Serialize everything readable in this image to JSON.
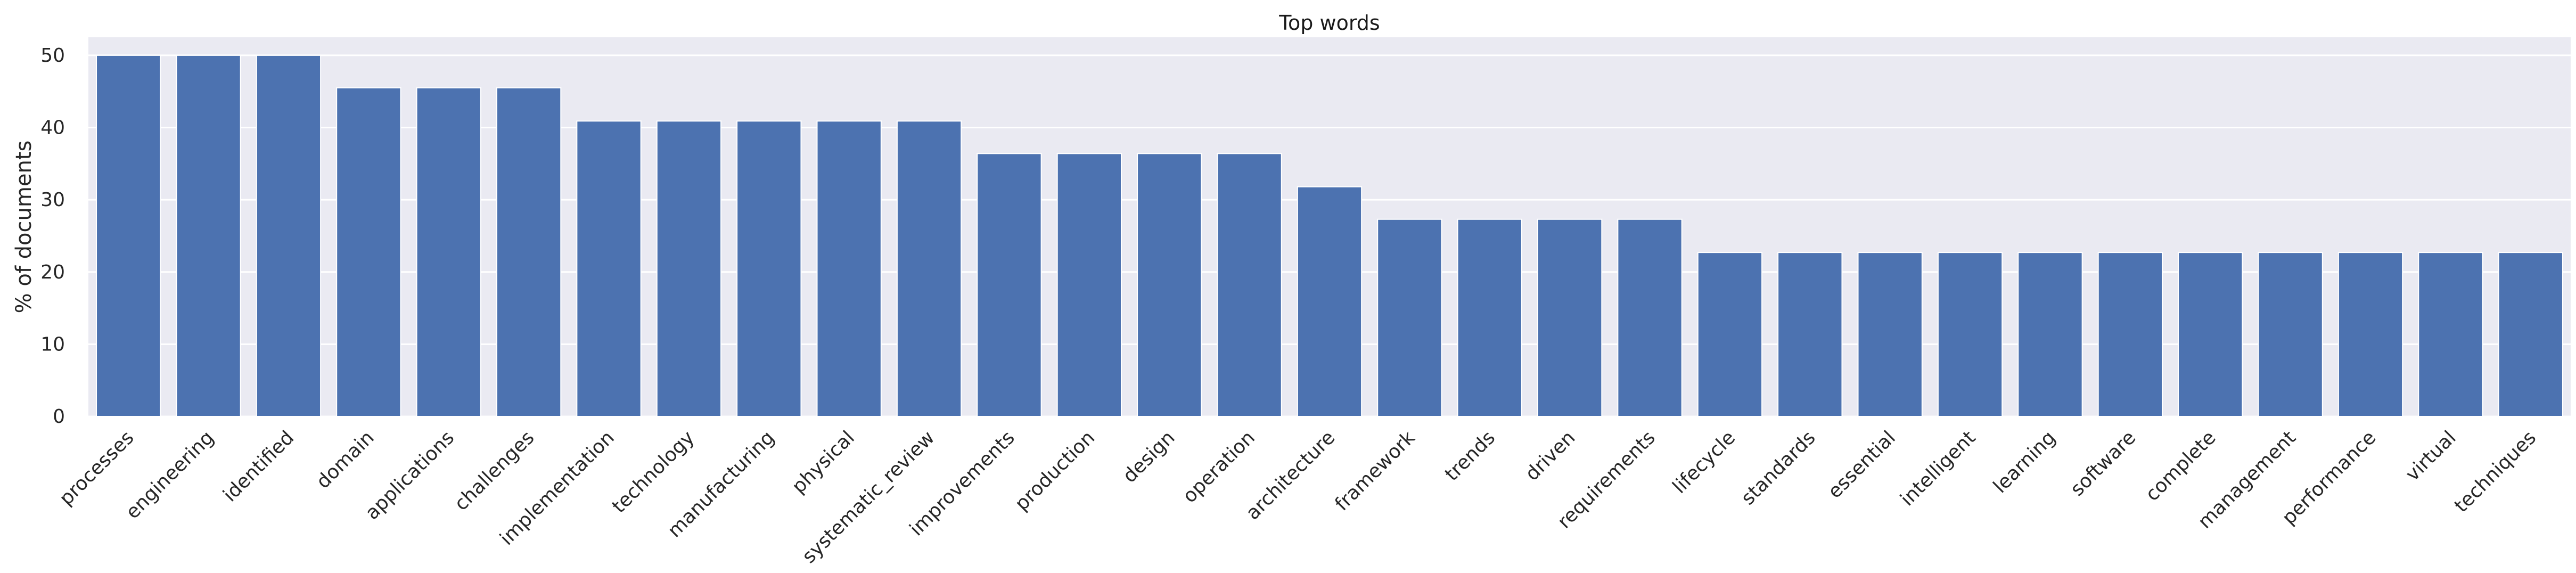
{
  "chart_data": {
    "type": "bar",
    "title": "Top words",
    "xlabel": "",
    "ylabel": "% of documents",
    "ylim": [
      0,
      52.5
    ],
    "yticks": [
      0,
      10,
      20,
      30,
      40,
      50
    ],
    "grid": true,
    "bar_color": "#4c72b0",
    "background_color": "#eaeaf2",
    "grid_color": "#ffffff",
    "categories": [
      "processes",
      "engineering",
      "identified",
      "domain",
      "applications",
      "challenges",
      "implementation",
      "technology",
      "manufacturing",
      "physical",
      "systematic_review",
      "improvements",
      "production",
      "design",
      "operation",
      "architecture",
      "framework",
      "trends",
      "driven",
      "requirements",
      "lifecycle",
      "standards",
      "essential",
      "intelligent",
      "learning",
      "software",
      "complete",
      "management",
      "performance",
      "virtual",
      "techniques"
    ],
    "values": [
      50.0,
      50.0,
      50.0,
      45.5,
      45.5,
      45.5,
      40.9,
      40.9,
      40.9,
      40.9,
      40.9,
      36.4,
      36.4,
      36.4,
      36.4,
      31.8,
      27.3,
      27.3,
      27.3,
      27.3,
      22.7,
      22.7,
      22.7,
      22.7,
      22.7,
      22.7,
      22.7,
      22.7,
      22.7,
      22.7,
      22.7
    ]
  }
}
